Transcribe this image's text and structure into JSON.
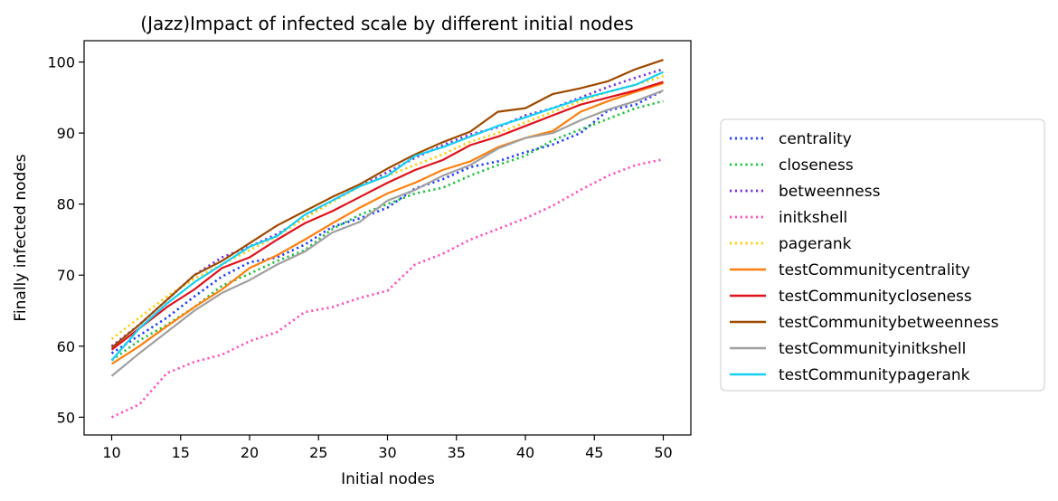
{
  "chart_data": {
    "type": "line",
    "title": "(Jazz)Impact of infected scale by different initial nodes",
    "xlabel": "Initial nodes",
    "ylabel": "Finally infected nodes",
    "xlim": [
      8,
      52
    ],
    "ylim": [
      47.5,
      103
    ],
    "xticks": [
      10,
      15,
      20,
      25,
      30,
      35,
      40,
      45,
      50
    ],
    "yticks": [
      50,
      60,
      70,
      80,
      90,
      100
    ],
    "legend_position": "center-right outside",
    "x": [
      10,
      12,
      14,
      16,
      18,
      20,
      22,
      24,
      26,
      28,
      30,
      32,
      34,
      36,
      38,
      40,
      42,
      44,
      46,
      48,
      50
    ],
    "series": [
      {
        "name": "centrality",
        "color": "#1f3bff",
        "style": "dotted",
        "values": [
          59.0,
          61.5,
          64.0,
          67.0,
          69.8,
          71.8,
          72.5,
          74.3,
          76.8,
          78.0,
          79.5,
          82.2,
          83.5,
          85.2,
          86.0,
          87.3,
          88.4,
          90.0,
          93.2,
          94.0,
          96.0
        ]
      },
      {
        "name": "closeness",
        "color": "#1ec23a",
        "style": "dotted",
        "values": [
          58.0,
          60.8,
          63.0,
          65.5,
          68.5,
          70.2,
          72.0,
          73.5,
          76.5,
          78.5,
          80.0,
          81.5,
          82.3,
          84.0,
          85.5,
          86.8,
          89.0,
          90.5,
          92.0,
          93.5,
          94.5
        ]
      },
      {
        "name": "betweenness",
        "color": "#7b2fe0",
        "style": "dotted",
        "values": [
          60.0,
          63.0,
          66.5,
          70.0,
          72.5,
          74.0,
          75.8,
          78.0,
          80.5,
          82.5,
          84.5,
          86.5,
          88.3,
          89.8,
          90.8,
          92.5,
          93.5,
          95.0,
          96.5,
          97.8,
          99.0
        ]
      },
      {
        "name": "initkshell",
        "color": "#ff4fbf",
        "style": "dotted",
        "values": [
          50.0,
          51.8,
          56.2,
          57.8,
          58.8,
          60.7,
          62.0,
          64.8,
          65.5,
          66.8,
          67.8,
          71.5,
          73.0,
          75.0,
          76.5,
          78.0,
          79.8,
          82.0,
          84.0,
          85.5,
          86.3
        ]
      },
      {
        "name": "pagerank",
        "color": "#ffcc00",
        "style": "dotted",
        "values": [
          61.0,
          64.0,
          67.0,
          69.5,
          71.5,
          73.5,
          75.5,
          78.0,
          80.3,
          82.5,
          84.0,
          85.5,
          87.0,
          88.8,
          90.0,
          91.5,
          93.0,
          94.5,
          95.8,
          96.8,
          98.0
        ]
      },
      {
        "name": "testCommunitycentrality",
        "color": "#ff7f0e",
        "style": "solid",
        "values": [
          57.5,
          60.0,
          62.8,
          65.5,
          68.0,
          71.0,
          72.8,
          75.0,
          77.3,
          79.5,
          81.5,
          83.0,
          84.8,
          86.0,
          88.0,
          89.3,
          90.3,
          93.0,
          94.5,
          95.8,
          97.0
        ]
      },
      {
        "name": "testCommunitycloseness",
        "color": "#e0121a",
        "style": "solid",
        "values": [
          59.5,
          62.5,
          65.5,
          68.0,
          71.0,
          72.5,
          75.0,
          77.3,
          79.0,
          81.0,
          83.0,
          84.8,
          86.2,
          88.3,
          89.5,
          91.0,
          92.5,
          94.0,
          95.0,
          96.0,
          97.2
        ]
      },
      {
        "name": "testCommunitybetweenness",
        "color": "#9e4a00",
        "style": "solid",
        "values": [
          59.8,
          63.0,
          66.5,
          70.0,
          72.0,
          74.5,
          77.0,
          79.0,
          81.0,
          82.8,
          85.0,
          87.0,
          88.7,
          90.2,
          93.0,
          93.5,
          95.5,
          96.3,
          97.3,
          99.0,
          100.3
        ]
      },
      {
        "name": "testCommunityinitkshell",
        "color": "#a0a0a0",
        "style": "solid",
        "values": [
          55.8,
          59.0,
          62.0,
          65.0,
          67.5,
          69.3,
          71.5,
          73.3,
          76.0,
          77.5,
          80.5,
          82.0,
          84.0,
          85.5,
          87.8,
          89.3,
          90.0,
          91.8,
          93.3,
          94.5,
          96.0
        ]
      },
      {
        "name": "testCommunitypagerank",
        "color": "#14d0f5",
        "style": "solid",
        "values": [
          58.0,
          62.5,
          66.0,
          69.0,
          71.5,
          74.0,
          75.5,
          78.5,
          80.5,
          82.5,
          84.0,
          86.8,
          88.0,
          89.5,
          91.0,
          92.2,
          93.5,
          94.8,
          95.8,
          96.8,
          98.6
        ]
      }
    ]
  }
}
